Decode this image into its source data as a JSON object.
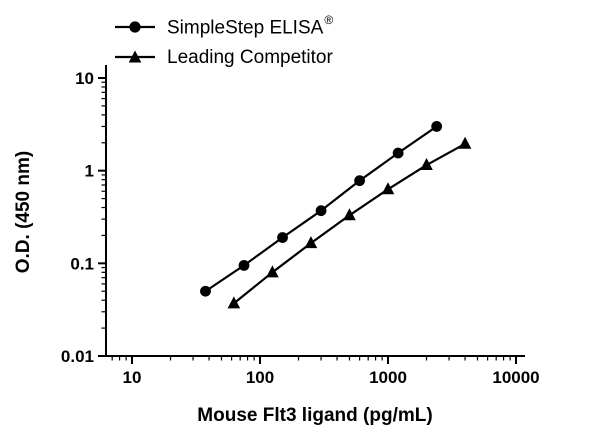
{
  "figure": {
    "background": "#ffffff",
    "axis_color": "#000000",
    "series_color": "#000000"
  },
  "legend": {
    "items": [
      {
        "label": "SimpleStep ELISA",
        "suffix": "®",
        "marker": "circle"
      },
      {
        "label": "Leading Competitor",
        "suffix": "",
        "marker": "triangle"
      }
    ]
  },
  "chart_data": {
    "type": "line",
    "title": "",
    "xlabel": "Mouse Flt3 ligand (pg/mL)",
    "ylabel": "O.D. (450 nm)",
    "x_scale": "log",
    "y_scale": "log",
    "xlim": [
      10,
      10000
    ],
    "ylim": [
      0.01,
      10
    ],
    "grid": false,
    "legend_position": "top-left",
    "x_tick_values": [
      10,
      100,
      1000,
      10000
    ],
    "x_tick_labels": [
      "10",
      "100",
      "1000",
      "10000"
    ],
    "y_tick_values": [
      0.01,
      0.1,
      1,
      10
    ],
    "y_tick_labels": [
      "0.01",
      "0.1",
      "1",
      "10"
    ],
    "series": [
      {
        "name": "SimpleStep ELISA®",
        "marker": "circle",
        "color": "#000000",
        "x": [
          37.5,
          75,
          150,
          300,
          600,
          1200,
          2400
        ],
        "y": [
          0.05,
          0.095,
          0.19,
          0.37,
          0.78,
          1.55,
          3.0
        ]
      },
      {
        "name": "Leading Competitor",
        "marker": "triangle",
        "color": "#000000",
        "x": [
          62.5,
          125,
          250,
          500,
          1000,
          2000,
          4000
        ],
        "y": [
          0.037,
          0.08,
          0.165,
          0.33,
          0.63,
          1.15,
          1.95
        ]
      }
    ]
  }
}
